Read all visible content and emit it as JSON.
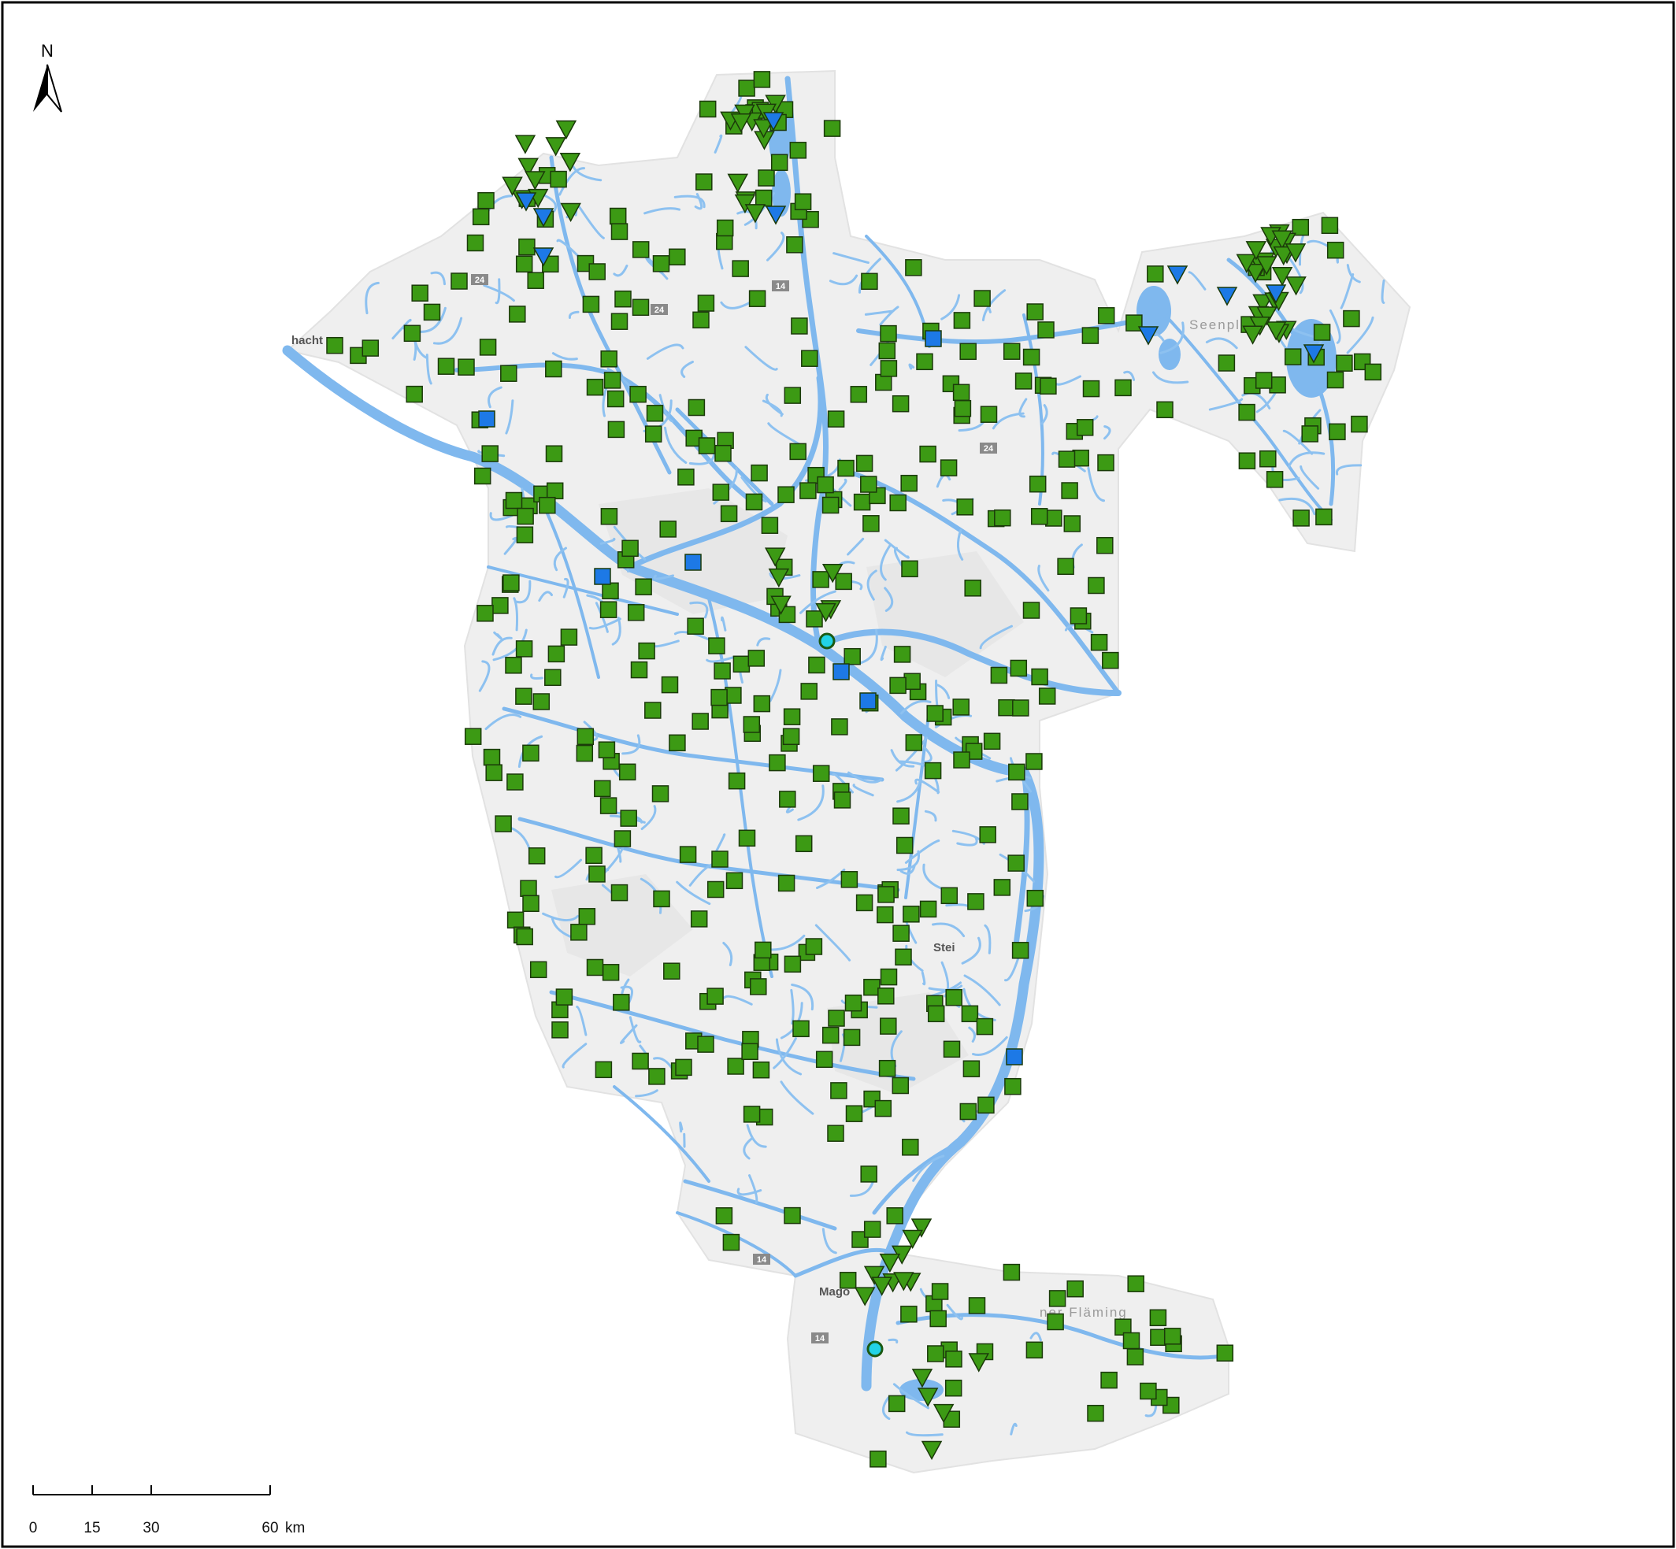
{
  "map": {
    "north_arrow_label": "N",
    "road_shields": [
      "24",
      "24",
      "14",
      "14",
      "24",
      "14",
      "14"
    ],
    "place_labels": [
      "hacht",
      "Stei",
      "Mago",
      "ner Fläming",
      "Seenplatt"
    ],
    "colors": {
      "water": "#7fb8ee",
      "basin": "#efefef",
      "station_green": "#3c9a14",
      "station_blue": "#1d79e6",
      "station_cyan": "#22d3e6"
    }
  },
  "scale_bar": {
    "ticks": [
      "0",
      "15",
      "30",
      "60"
    ],
    "unit": "km"
  }
}
